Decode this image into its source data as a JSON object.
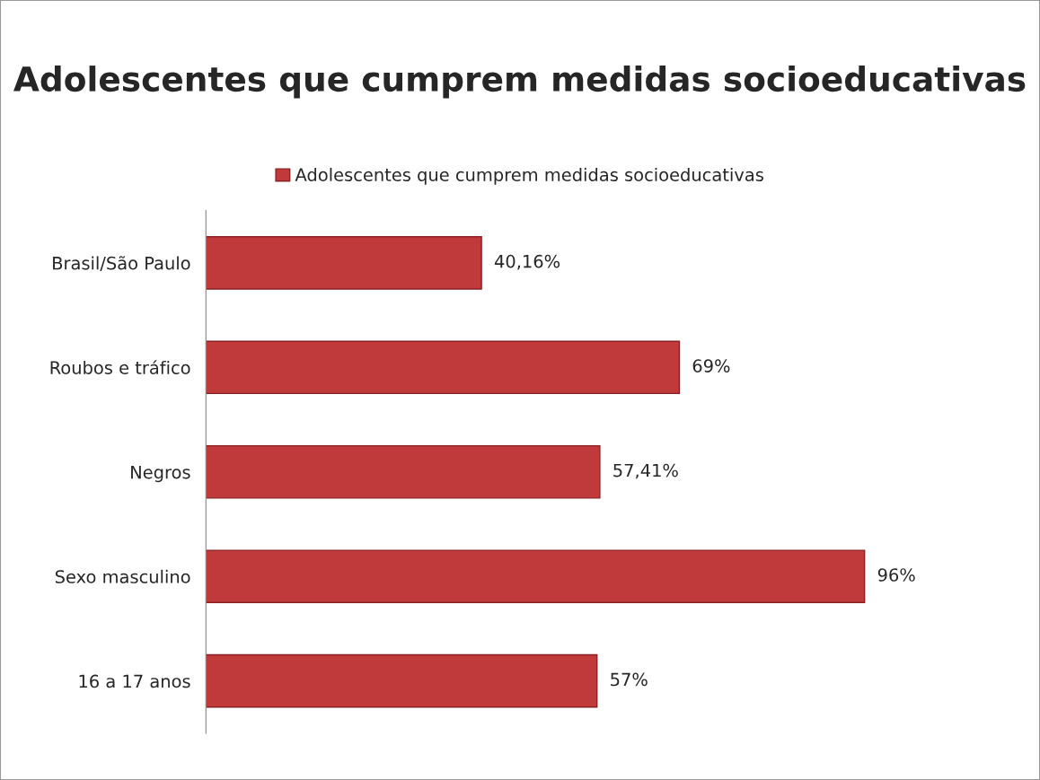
{
  "chart_data": {
    "type": "bar",
    "orientation": "horizontal",
    "title": "Adolescentes que cumprem medidas socioeducativas",
    "categories": [
      "Brasil/São Paulo",
      "Roubos e tráfico",
      "Negros",
      "Sexo masculino",
      "16 a 17 anos"
    ],
    "series": [
      {
        "name": "Adolescentes que cumprem medidas socioeducativas",
        "color": "#c0393b",
        "values": [
          40.16,
          69,
          57.41,
          96,
          57
        ],
        "value_labels": [
          "40,16%",
          "69%",
          "57,41%",
          "96%",
          "57%"
        ]
      }
    ],
    "legend": "top",
    "grid": false
  }
}
